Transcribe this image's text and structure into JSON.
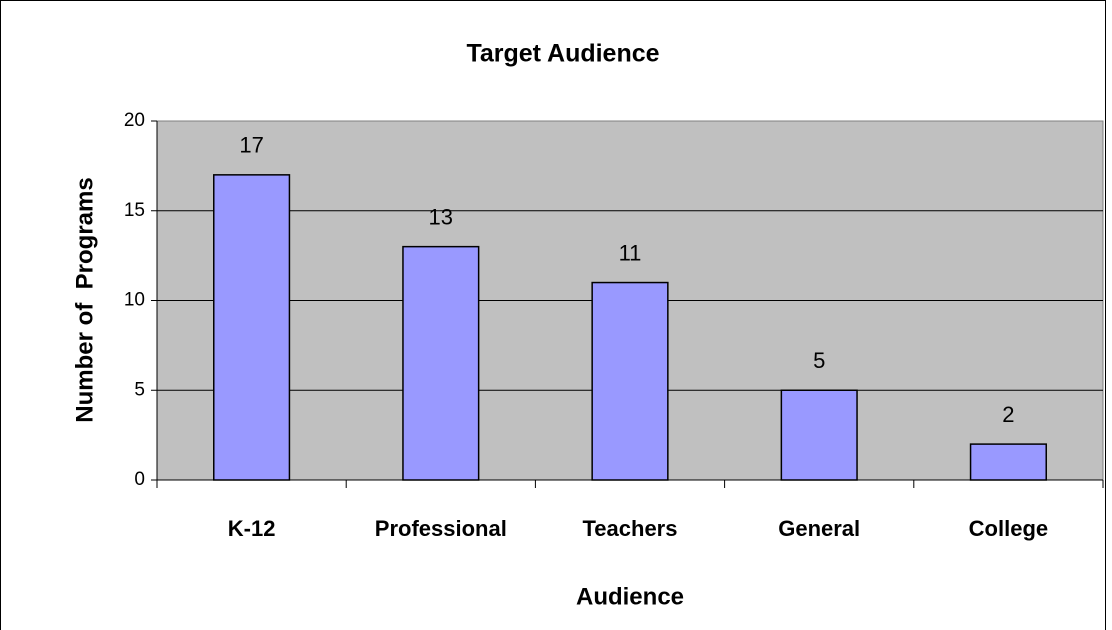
{
  "chart_data": {
    "type": "bar",
    "title": "Target Audience",
    "x_label": "Audience",
    "y_label": "Number of  Programs",
    "categories": [
      "K-12",
      "Professional",
      "Teachers",
      "General",
      "College"
    ],
    "values": [
      17,
      13,
      11,
      5,
      2
    ],
    "color": "#9999ff",
    "ylim": [
      0,
      20
    ],
    "yticks": [
      0,
      5,
      10,
      15,
      20
    ],
    "grid": true
  }
}
